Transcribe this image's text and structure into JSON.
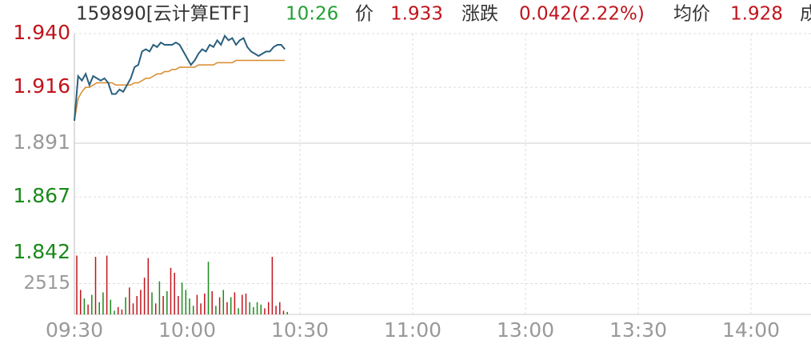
{
  "header": {
    "code": "159890[云计算ETF]",
    "time": "10:26",
    "price_label": "价",
    "price": "1.933",
    "change_label": "涨跌",
    "change": "0.042(2.22%)",
    "avg_label": "均价",
    "avg": "1.928",
    "volume_label": "成"
  },
  "chart_data": {
    "type": "line",
    "x": [
      0,
      1,
      2,
      3,
      4,
      5,
      6,
      7,
      8,
      9,
      10,
      11,
      12,
      13,
      14,
      15,
      16,
      17,
      18,
      19,
      20,
      21,
      22,
      23,
      24,
      25,
      26,
      27,
      28,
      29,
      30,
      31,
      32,
      33,
      34,
      35,
      36,
      37,
      38,
      39,
      40,
      41,
      42,
      43,
      44,
      45,
      46,
      47,
      48,
      49,
      50,
      51,
      52,
      53,
      54,
      55,
      56
    ],
    "xlim": [
      0,
      196
    ],
    "xticks": [
      {
        "value": 0,
        "label": "09:30"
      },
      {
        "value": 30,
        "label": "10:00"
      },
      {
        "value": 60,
        "label": "10:30"
      },
      {
        "value": 90,
        "label": "11:00"
      },
      {
        "value": 120,
        "label": "13:00"
      },
      {
        "value": 150,
        "label": "13:30"
      },
      {
        "value": 180,
        "label": "14:00"
      }
    ],
    "ylim": [
      1.842,
      1.94
    ],
    "yticks": [
      {
        "value": 1.94,
        "label": "1.940"
      },
      {
        "value": 1.916,
        "label": "1.916"
      },
      {
        "value": 1.891,
        "label": "1.891"
      },
      {
        "value": 1.867,
        "label": "1.867"
      },
      {
        "value": 1.842,
        "label": "1.842"
      }
    ],
    "grid": true,
    "series": [
      {
        "color": "#2a5f7e",
        "values": [
          1.901,
          1.921,
          1.919,
          1.922,
          1.917,
          1.921,
          1.92,
          1.919,
          1.92,
          1.918,
          1.913,
          1.913,
          1.915,
          1.914,
          1.917,
          1.92,
          1.925,
          1.926,
          1.932,
          1.933,
          1.932,
          1.935,
          1.934,
          1.936,
          1.935,
          1.935,
          1.935,
          1.936,
          1.935,
          1.932,
          1.929,
          1.926,
          1.928,
          1.931,
          1.933,
          1.932,
          1.935,
          1.934,
          1.937,
          1.935,
          1.939,
          1.937,
          1.938,
          1.935,
          1.937,
          1.938,
          1.934,
          1.932,
          1.931,
          1.93,
          1.931,
          1.932,
          1.932,
          1.934,
          1.935,
          1.935,
          1.933
        ]
      },
      {
        "color": "#d88a2a",
        "values": [
          1.901,
          1.911,
          1.914,
          1.916,
          1.916,
          1.917,
          1.918,
          1.918,
          1.918,
          1.918,
          1.918,
          1.917,
          1.917,
          1.917,
          1.917,
          1.917,
          1.918,
          1.918,
          1.919,
          1.92,
          1.92,
          1.921,
          1.922,
          1.922,
          1.923,
          1.923,
          1.924,
          1.924,
          1.925,
          1.925,
          1.925,
          1.925,
          1.925,
          1.926,
          1.926,
          1.926,
          1.926,
          1.926,
          1.927,
          1.927,
          1.927,
          1.927,
          1.927,
          1.928,
          1.928,
          1.928,
          1.928,
          1.928,
          1.928,
          1.928,
          1.928,
          1.928,
          1.928,
          1.928,
          1.928,
          1.928,
          1.928
        ]
      }
    ],
    "volume": {
      "ylim": [
        0,
        5030
      ],
      "yticks": [
        2515
      ],
      "values": [
        4800,
        2000,
        1300,
        800,
        1600,
        4700,
        1000,
        1800,
        4800,
        1200,
        300,
        600,
        400,
        1400,
        2200,
        900,
        1500,
        2000,
        3000,
        4600,
        1800,
        900,
        2700,
        1500,
        1900,
        3800,
        3400,
        1500,
        2600,
        2000,
        1300,
        700,
        1600,
        900,
        1700,
        4300,
        1900,
        700,
        1400,
        2000,
        1000,
        1400,
        1800,
        500,
        1600,
        1700,
        1000,
        600,
        1000,
        800,
        500,
        1000,
        4700,
        700,
        1000,
        300,
        200
      ]
    }
  }
}
